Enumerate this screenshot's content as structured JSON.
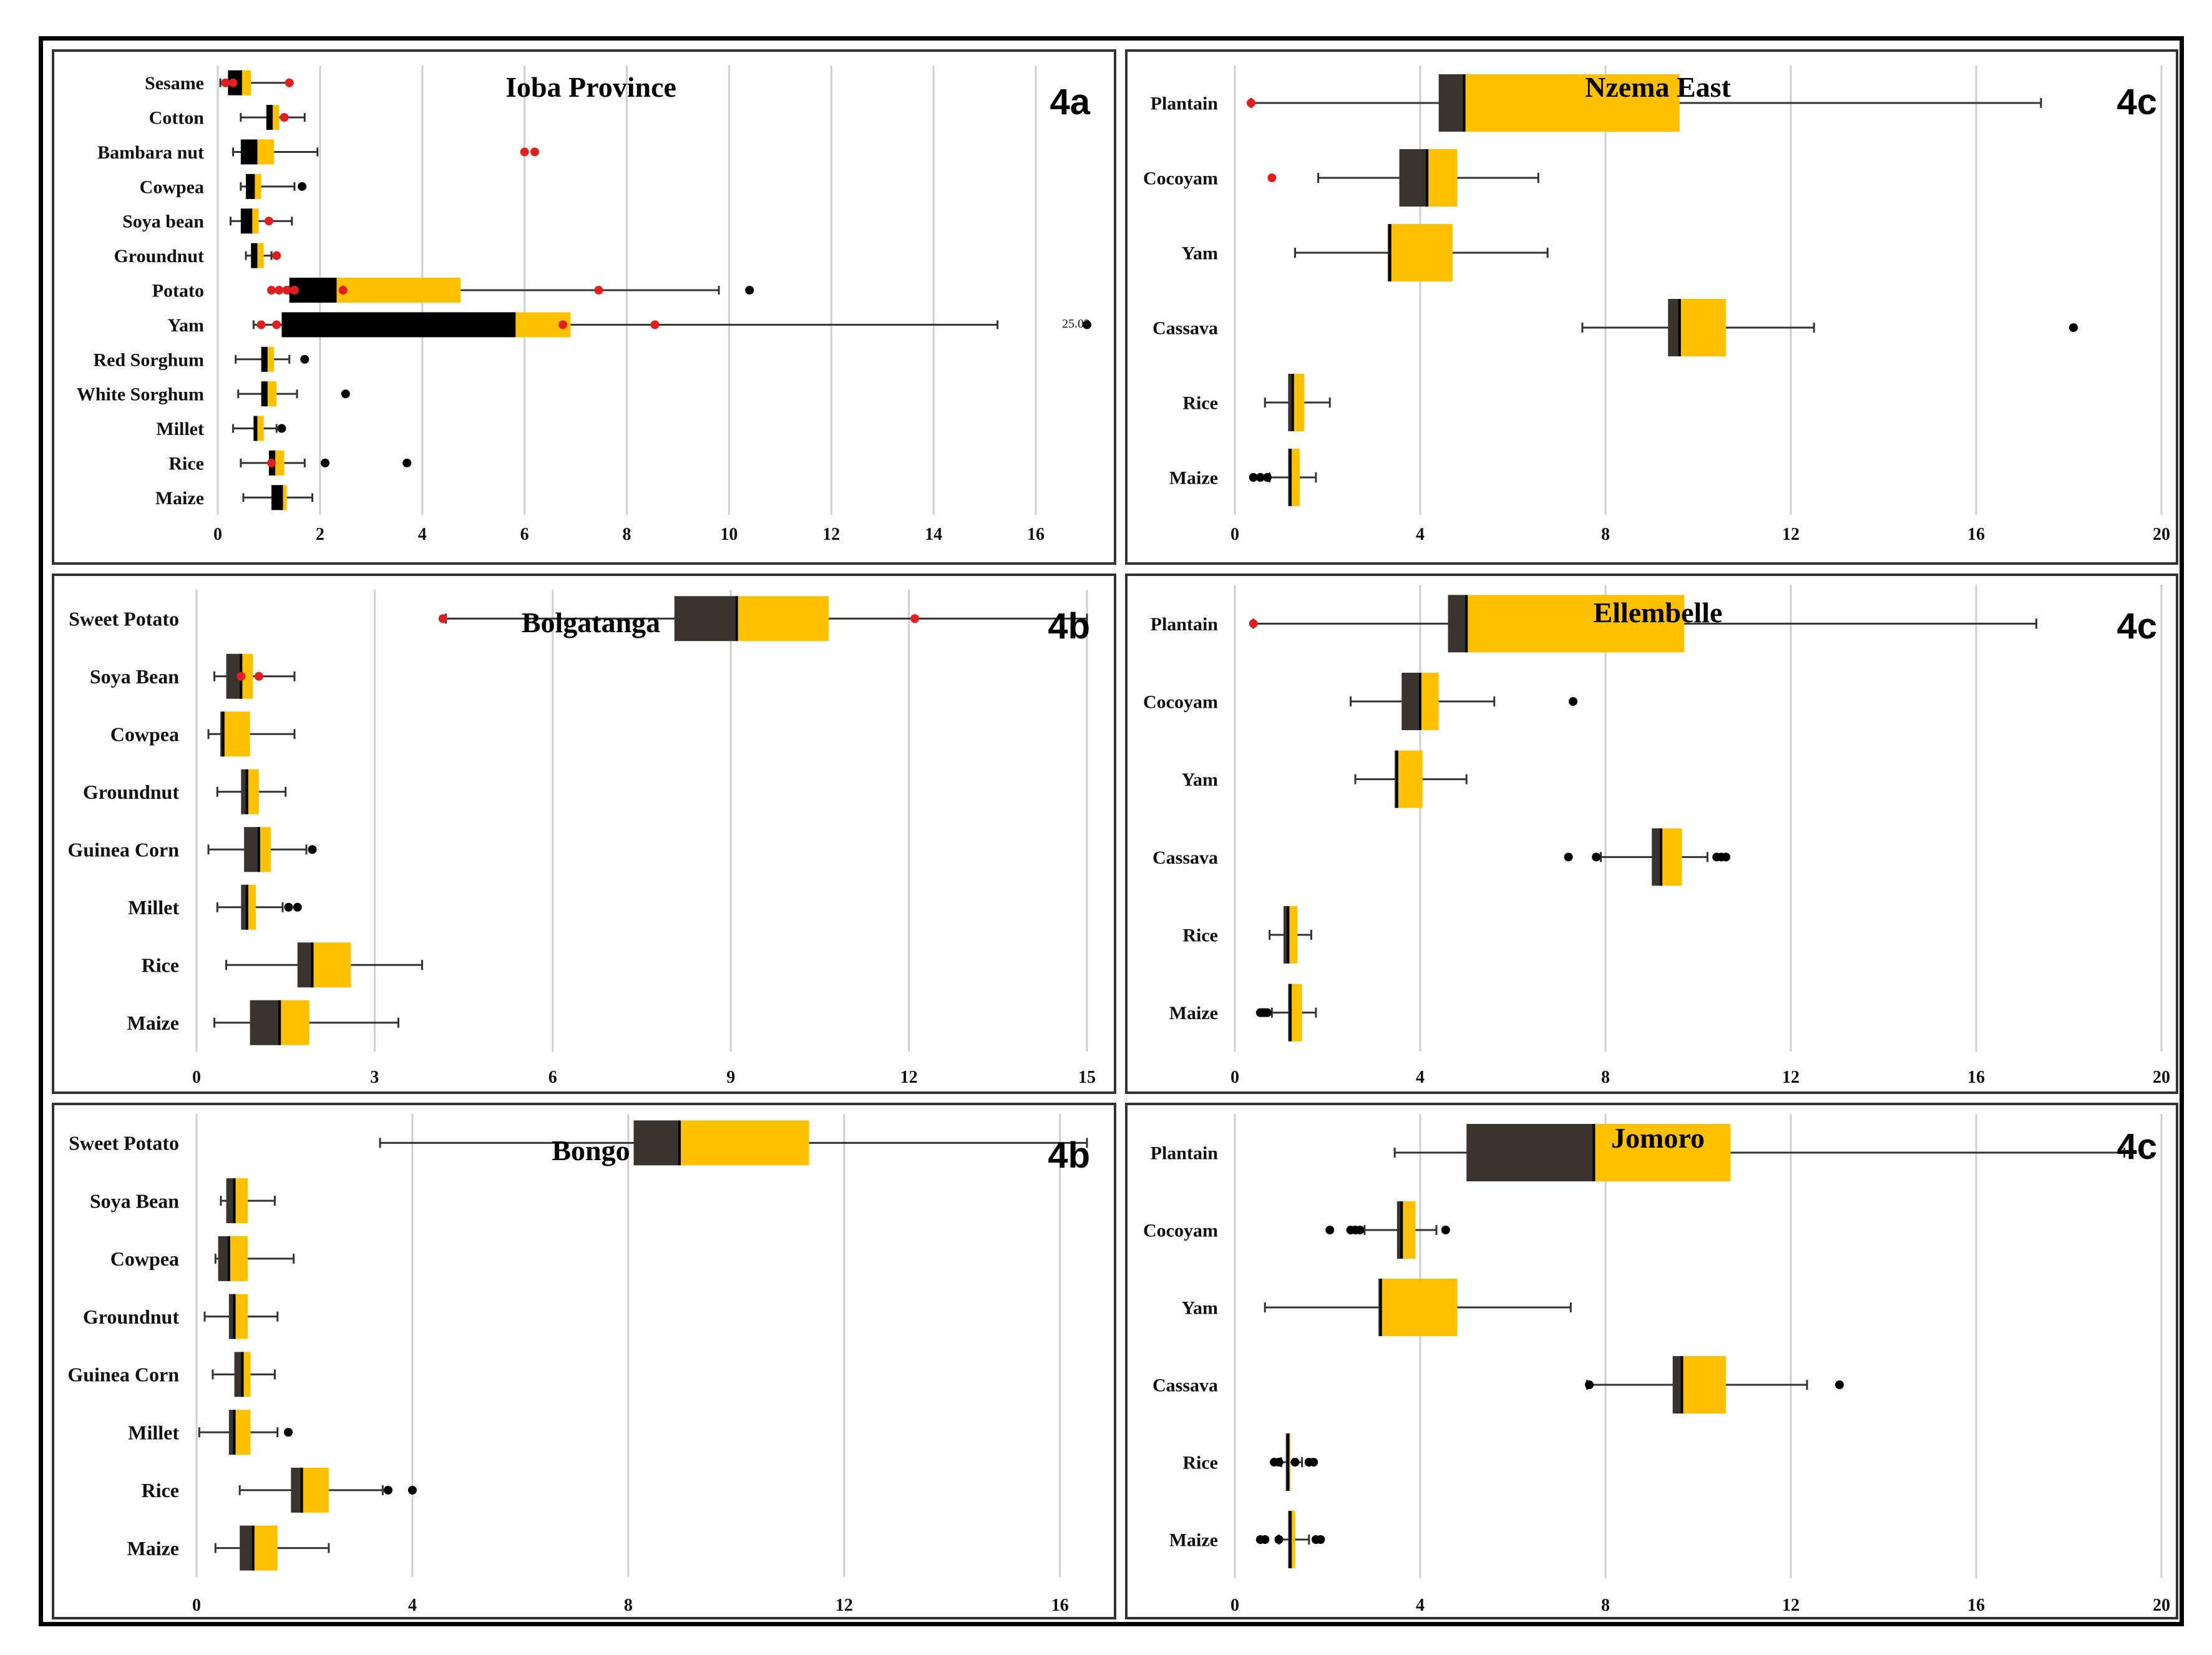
{
  "colors": {
    "box_dark": "#3a3431",
    "box_black": "#000000",
    "box_yellow": "#ffc000",
    "grid": "#cfcfcf",
    "whisker": "#333333",
    "outlier_red": "#e02020",
    "outlier_black": "#000000"
  },
  "chart_data": [
    {
      "type": "boxplot",
      "orientation": "horizontal",
      "title": "Ioba Province",
      "label": "4a",
      "xlim": [
        0,
        17
      ],
      "xticks": [
        "0",
        "2",
        "4",
        "6",
        "8",
        "10",
        "12",
        "14",
        "16"
      ],
      "annotation": "25.02",
      "categories": [
        "Sesame",
        "Cotton",
        "Bambara nut",
        "Cowpea",
        "Soya bean",
        "Groundnut",
        "Potato",
        "Yam",
        "Red Sorghum",
        "White Sorghum",
        "Millet",
        "Rice",
        "Maize"
      ],
      "boxes": [
        {
          "min": 0.05,
          "q1": 0.2,
          "median": 0.45,
          "q3": 0.65,
          "max": 1.4,
          "outliers": [
            {
              "v": 0.15,
              "c": "red"
            },
            {
              "v": 0.3,
              "c": "red"
            },
            {
              "v": 1.4,
              "c": "red"
            }
          ]
        },
        {
          "min": 0.45,
          "q1": 0.95,
          "median": 1.05,
          "q3": 1.2,
          "max": 1.7,
          "outliers": [
            {
              "v": 1.3,
              "c": "red"
            }
          ]
        },
        {
          "min": 0.3,
          "q1": 0.45,
          "median": 0.75,
          "q3": 1.1,
          "max": 1.95,
          "outliers": [
            {
              "v": 6.0,
              "c": "red"
            },
            {
              "v": 6.2,
              "c": "red"
            }
          ]
        },
        {
          "min": 0.45,
          "q1": 0.55,
          "median": 0.7,
          "q3": 0.85,
          "max": 1.5,
          "outliers": [
            {
              "v": 1.65,
              "c": "black"
            }
          ]
        },
        {
          "min": 0.25,
          "q1": 0.45,
          "median": 0.65,
          "q3": 0.8,
          "max": 1.45,
          "outliers": [
            {
              "v": 1.0,
              "c": "red"
            }
          ]
        },
        {
          "min": 0.55,
          "q1": 0.65,
          "median": 0.75,
          "q3": 0.9,
          "max": 1.05,
          "outliers": [
            {
              "v": 1.15,
              "c": "red"
            }
          ]
        },
        {
          "min": 1.4,
          "q1": 1.4,
          "median": 2.3,
          "q3": 4.75,
          "max": 9.8,
          "outliers": [
            {
              "v": 1.05,
              "c": "red"
            },
            {
              "v": 1.2,
              "c": "red"
            },
            {
              "v": 1.35,
              "c": "red"
            },
            {
              "v": 1.5,
              "c": "red"
            },
            {
              "v": 2.45,
              "c": "red"
            },
            {
              "v": 7.45,
              "c": "red"
            },
            {
              "v": 10.4,
              "c": "black"
            }
          ]
        },
        {
          "min": 0.7,
          "q1": 1.25,
          "median": 5.8,
          "q3": 6.9,
          "max": 15.25,
          "outliers": [
            {
              "v": 0.85,
              "c": "red"
            },
            {
              "v": 1.15,
              "c": "red"
            },
            {
              "v": 6.75,
              "c": "red"
            },
            {
              "v": 8.55,
              "c": "red"
            },
            {
              "v": 17.0,
              "c": "black"
            }
          ]
        },
        {
          "min": 0.35,
          "q1": 0.85,
          "median": 0.95,
          "q3": 1.1,
          "max": 1.4,
          "outliers": [
            {
              "v": 1.7,
              "c": "black"
            }
          ]
        },
        {
          "min": 0.4,
          "q1": 0.85,
          "median": 0.95,
          "q3": 1.15,
          "max": 1.55,
          "outliers": [
            {
              "v": 2.5,
              "c": "black"
            }
          ]
        },
        {
          "min": 0.3,
          "q1": 0.7,
          "median": 0.75,
          "q3": 0.9,
          "max": 1.15,
          "outliers": [
            {
              "v": 1.25,
              "c": "black"
            }
          ]
        },
        {
          "min": 0.45,
          "q1": 1.0,
          "median": 1.1,
          "q3": 1.3,
          "max": 1.7,
          "outliers": [
            {
              "v": 1.05,
              "c": "red"
            },
            {
              "v": 2.1,
              "c": "black"
            },
            {
              "v": 3.7,
              "c": "black"
            }
          ]
        },
        {
          "min": 0.5,
          "q1": 1.05,
          "median": 1.25,
          "q3": 1.35,
          "max": 1.85,
          "outliers": []
        }
      ]
    },
    {
      "type": "boxplot",
      "orientation": "horizontal",
      "title": "Bolgatanga",
      "label": "4b",
      "xlim": [
        0,
        15
      ],
      "xticks": [
        "0",
        "3",
        "6",
        "9",
        "12",
        "15"
      ],
      "categories": [
        "Sweet Potato",
        "Soya Bean",
        "Cowpea",
        "Groundnut",
        "Guinea Corn",
        "Millet",
        "Rice",
        "Maize"
      ],
      "boxes": [
        {
          "min": 4.2,
          "q1": 8.05,
          "median": 9.1,
          "q3": 10.65,
          "max": 15.0,
          "outliers": [
            {
              "v": 4.15,
              "c": "red"
            },
            {
              "v": 12.1,
              "c": "red"
            }
          ]
        },
        {
          "min": 0.3,
          "q1": 0.5,
          "median": 0.75,
          "q3": 0.95,
          "max": 1.65,
          "outliers": [
            {
              "v": 0.75,
              "c": "red"
            },
            {
              "v": 1.05,
              "c": "red"
            }
          ]
        },
        {
          "min": 0.2,
          "q1": 0.4,
          "median": 0.45,
          "q3": 0.9,
          "max": 1.65,
          "outliers": []
        },
        {
          "min": 0.35,
          "q1": 0.75,
          "median": 0.85,
          "q3": 1.05,
          "max": 1.5,
          "outliers": []
        },
        {
          "min": 0.2,
          "q1": 0.8,
          "median": 1.05,
          "q3": 1.25,
          "max": 1.85,
          "outliers": [
            {
              "v": 1.95,
              "c": "black"
            }
          ]
        },
        {
          "min": 0.35,
          "q1": 0.75,
          "median": 0.85,
          "q3": 1.0,
          "max": 1.45,
          "outliers": [
            {
              "v": 1.55,
              "c": "black"
            },
            {
              "v": 1.7,
              "c": "black"
            }
          ]
        },
        {
          "min": 0.5,
          "q1": 1.7,
          "median": 1.95,
          "q3": 2.6,
          "max": 3.8,
          "outliers": []
        },
        {
          "min": 0.3,
          "q1": 0.9,
          "median": 1.4,
          "q3": 1.9,
          "max": 3.4,
          "outliers": []
        }
      ]
    },
    {
      "type": "boxplot",
      "orientation": "horizontal",
      "title": "Bongo",
      "label": "4b",
      "xlim": [
        0,
        16.5
      ],
      "xticks": [
        "0",
        "4",
        "8",
        "12",
        "16"
      ],
      "categories": [
        "Sweet Potato",
        "Soya Bean",
        "Cowpea",
        "Groundnut",
        "Guinea Corn",
        "Millet",
        "Rice",
        "Maize"
      ],
      "boxes": [
        {
          "min": 3.4,
          "q1": 8.1,
          "median": 8.95,
          "q3": 11.35,
          "max": 16.5,
          "outliers": []
        },
        {
          "min": 0.45,
          "q1": 0.55,
          "median": 0.7,
          "q3": 0.95,
          "max": 1.45,
          "outliers": []
        },
        {
          "min": 0.35,
          "q1": 0.4,
          "median": 0.6,
          "q3": 0.95,
          "max": 1.8,
          "outliers": []
        },
        {
          "min": 0.15,
          "q1": 0.6,
          "median": 0.7,
          "q3": 0.95,
          "max": 1.5,
          "outliers": []
        },
        {
          "min": 0.3,
          "q1": 0.7,
          "median": 0.85,
          "q3": 1.0,
          "max": 1.45,
          "outliers": []
        },
        {
          "min": 0.05,
          "q1": 0.6,
          "median": 0.7,
          "q3": 1.0,
          "max": 1.5,
          "outliers": [
            {
              "v": 1.7,
              "c": "black"
            }
          ]
        },
        {
          "min": 0.8,
          "q1": 1.75,
          "median": 1.95,
          "q3": 2.45,
          "max": 3.45,
          "outliers": [
            {
              "v": 3.55,
              "c": "black"
            },
            {
              "v": 4.0,
              "c": "black"
            }
          ]
        },
        {
          "min": 0.35,
          "q1": 0.8,
          "median": 1.05,
          "q3": 1.5,
          "max": 2.45,
          "outliers": []
        }
      ]
    },
    {
      "type": "boxplot",
      "orientation": "horizontal",
      "title": "Nzema East",
      "label": "4c",
      "xlim": [
        0,
        20
      ],
      "xticks": [
        "0",
        "4",
        "8",
        "12",
        "16",
        "20"
      ],
      "categories": [
        "Plantain",
        "Cocoyam",
        "Yam",
        "Cassava",
        "Rice",
        "Maize"
      ],
      "boxes": [
        {
          "min": 0.35,
          "q1": 4.4,
          "median": 4.95,
          "q3": 9.6,
          "max": 17.4,
          "outliers": [
            {
              "v": 0.35,
              "c": "red"
            }
          ]
        },
        {
          "min": 1.8,
          "q1": 3.55,
          "median": 4.15,
          "q3": 4.8,
          "max": 6.55,
          "outliers": [
            {
              "v": 0.8,
              "c": "red"
            }
          ]
        },
        {
          "min": 1.3,
          "q1": 3.3,
          "median": 3.35,
          "q3": 4.7,
          "max": 6.75,
          "outliers": []
        },
        {
          "min": 7.5,
          "q1": 9.35,
          "median": 9.6,
          "q3": 10.6,
          "max": 12.5,
          "outliers": [
            {
              "v": 18.1,
              "c": "black"
            }
          ]
        },
        {
          "min": 0.65,
          "q1": 1.15,
          "median": 1.25,
          "q3": 1.5,
          "max": 2.05,
          "outliers": []
        },
        {
          "min": 0.75,
          "q1": 1.15,
          "median": 1.2,
          "q3": 1.4,
          "max": 1.75,
          "outliers": [
            {
              "v": 0.4,
              "c": "black"
            },
            {
              "v": 0.55,
              "c": "black"
            },
            {
              "v": 0.7,
              "c": "black"
            }
          ]
        }
      ]
    },
    {
      "type": "boxplot",
      "orientation": "horizontal",
      "title": "Ellembelle",
      "label": "4c",
      "xlim": [
        0,
        20
      ],
      "xticks": [
        "0",
        "4",
        "8",
        "12",
        "16",
        "20"
      ],
      "categories": [
        "Plantain",
        "Cocoyam",
        "Yam",
        "Cassava",
        "Rice",
        "Maize"
      ],
      "boxes": [
        {
          "min": 0.4,
          "q1": 4.6,
          "median": 5.0,
          "q3": 9.7,
          "max": 17.3,
          "outliers": [
            {
              "v": 0.4,
              "c": "red"
            }
          ]
        },
        {
          "min": 2.5,
          "q1": 3.6,
          "median": 4.0,
          "q3": 4.4,
          "max": 5.6,
          "outliers": [
            {
              "v": 7.3,
              "c": "black"
            }
          ]
        },
        {
          "min": 2.6,
          "q1": 3.45,
          "median": 3.5,
          "q3": 4.05,
          "max": 5.0,
          "outliers": []
        },
        {
          "min": 7.9,
          "q1": 9.0,
          "median": 9.2,
          "q3": 9.65,
          "max": 10.2,
          "outliers": [
            {
              "v": 7.2,
              "c": "black"
            },
            {
              "v": 7.8,
              "c": "black"
            },
            {
              "v": 10.4,
              "c": "black"
            },
            {
              "v": 10.5,
              "c": "black"
            },
            {
              "v": 10.6,
              "c": "black"
            }
          ]
        },
        {
          "min": 0.75,
          "q1": 1.05,
          "median": 1.15,
          "q3": 1.35,
          "max": 1.65,
          "outliers": []
        },
        {
          "min": 0.8,
          "q1": 1.15,
          "median": 1.2,
          "q3": 1.45,
          "max": 1.75,
          "outliers": [
            {
              "v": 0.55,
              "c": "black"
            },
            {
              "v": 0.6,
              "c": "black"
            },
            {
              "v": 0.65,
              "c": "black"
            },
            {
              "v": 0.7,
              "c": "black"
            }
          ]
        }
      ]
    },
    {
      "type": "boxplot",
      "orientation": "horizontal",
      "title": "Jomoro",
      "label": "4c",
      "xlim": [
        0,
        20
      ],
      "xticks": [
        "0",
        "4",
        "8",
        "12",
        "16",
        "20"
      ],
      "categories": [
        "Plantain",
        "Cocoyam",
        "Yam",
        "Cassava",
        "Rice",
        "Maize"
      ],
      "boxes": [
        {
          "min": 3.45,
          "q1": 5.0,
          "median": 7.75,
          "q3": 10.7,
          "max": 19.2,
          "outliers": []
        },
        {
          "min": 2.8,
          "q1": 3.5,
          "median": 3.6,
          "q3": 3.9,
          "max": 4.35,
          "outliers": [
            {
              "v": 2.05,
              "c": "black"
            },
            {
              "v": 2.5,
              "c": "black"
            },
            {
              "v": 2.6,
              "c": "black"
            },
            {
              "v": 2.7,
              "c": "black"
            },
            {
              "v": 4.55,
              "c": "black"
            }
          ]
        },
        {
          "min": 0.65,
          "q1": 3.1,
          "median": 3.15,
          "q3": 4.8,
          "max": 7.25,
          "outliers": []
        },
        {
          "min": 7.6,
          "q1": 9.45,
          "median": 9.65,
          "q3": 10.6,
          "max": 12.35,
          "outliers": [
            {
              "v": 7.65,
              "c": "black"
            },
            {
              "v": 13.05,
              "c": "black"
            }
          ]
        },
        {
          "min": 1.0,
          "q1": 1.1,
          "median": 1.15,
          "q3": 1.2,
          "max": 1.45,
          "outliers": [
            {
              "v": 0.85,
              "c": "black"
            },
            {
              "v": 0.95,
              "c": "black"
            },
            {
              "v": 1.3,
              "c": "black"
            },
            {
              "v": 1.6,
              "c": "black"
            },
            {
              "v": 1.7,
              "c": "black"
            }
          ]
        },
        {
          "min": 0.95,
          "q1": 1.15,
          "median": 1.2,
          "q3": 1.3,
          "max": 1.6,
          "outliers": [
            {
              "v": 0.55,
              "c": "black"
            },
            {
              "v": 0.65,
              "c": "black"
            },
            {
              "v": 0.95,
              "c": "black"
            },
            {
              "v": 1.75,
              "c": "black"
            },
            {
              "v": 1.85,
              "c": "black"
            }
          ]
        }
      ]
    }
  ]
}
